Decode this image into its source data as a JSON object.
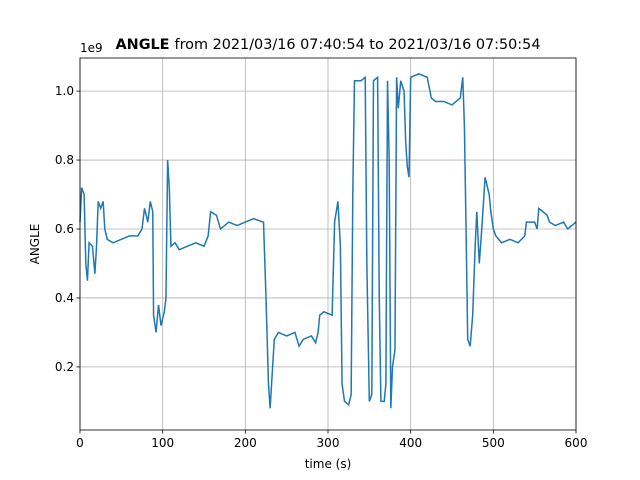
{
  "chart_data": {
    "type": "line",
    "title": {
      "bold": "ANGLE",
      "rest": "from 2021/03/16 07:40:54 to 2021/03/16 07:50:54"
    },
    "offset_label": "1e9",
    "xlabel": "time (s)",
    "ylabel": "ANGLE",
    "xlim": [
      0,
      600
    ],
    "ylim": [
      0.017,
      1.096
    ],
    "xticks": [
      0,
      100,
      200,
      300,
      400,
      500,
      600
    ],
    "yticks": [
      0.2,
      0.4,
      0.6,
      0.8,
      {
        "value": 1,
        "label": "1.0"
      }
    ],
    "grid": true,
    "x": [
      0,
      2,
      5,
      7,
      9,
      11,
      15,
      18,
      20,
      22,
      25,
      28,
      30,
      33,
      40,
      50,
      60,
      70,
      75,
      78,
      82,
      85,
      88,
      89,
      92,
      95,
      98,
      102,
      104,
      106,
      108,
      110,
      115,
      120,
      130,
      140,
      150,
      155,
      158,
      165,
      170,
      180,
      190,
      200,
      210,
      222,
      225,
      228,
      230,
      233,
      235,
      240,
      250,
      260,
      265,
      270,
      280,
      285,
      288,
      290,
      295,
      305,
      308,
      312,
      315,
      317,
      320,
      325,
      328,
      330,
      332,
      340,
      345,
      347,
      350,
      353,
      355,
      360,
      362,
      364,
      368,
      370,
      372,
      374,
      376,
      378,
      381,
      383,
      385,
      388,
      392,
      394,
      396,
      398,
      400,
      410,
      420,
      425,
      430,
      440,
      450,
      460,
      463,
      465,
      467,
      469,
      472,
      475,
      478,
      480,
      483,
      486,
      490,
      495,
      497,
      500,
      503,
      510,
      520,
      530,
      538,
      540,
      550,
      553,
      555,
      560,
      565,
      568,
      575,
      585,
      590,
      600
    ],
    "series": [
      {
        "name": "ANGLE",
        "color": "#1f77b4",
        "values": [
          0.62,
          0.72,
          0.7,
          0.5,
          0.45,
          0.56,
          0.55,
          0.47,
          0.55,
          0.68,
          0.66,
          0.68,
          0.6,
          0.57,
          0.56,
          0.57,
          0.58,
          0.58,
          0.6,
          0.66,
          0.62,
          0.68,
          0.65,
          0.35,
          0.3,
          0.38,
          0.32,
          0.36,
          0.4,
          0.8,
          0.72,
          0.55,
          0.56,
          0.54,
          0.55,
          0.56,
          0.55,
          0.58,
          0.65,
          0.64,
          0.6,
          0.62,
          0.61,
          0.62,
          0.63,
          0.62,
          0.4,
          0.15,
          0.08,
          0.2,
          0.28,
          0.3,
          0.29,
          0.3,
          0.26,
          0.28,
          0.29,
          0.27,
          0.3,
          0.35,
          0.36,
          0.35,
          0.62,
          0.68,
          0.55,
          0.15,
          0.1,
          0.09,
          0.12,
          0.7,
          1.03,
          1.03,
          1.04,
          0.5,
          0.1,
          0.12,
          1.03,
          1.04,
          0.4,
          0.1,
          0.1,
          0.15,
          1.03,
          0.8,
          0.08,
          0.2,
          0.25,
          1.04,
          0.95,
          1.03,
          1.0,
          0.85,
          0.78,
          0.75,
          1.04,
          1.05,
          1.04,
          0.98,
          0.97,
          0.97,
          0.96,
          0.98,
          1.04,
          0.9,
          0.6,
          0.28,
          0.26,
          0.35,
          0.55,
          0.65,
          0.5,
          0.6,
          0.75,
          0.7,
          0.65,
          0.6,
          0.58,
          0.56,
          0.57,
          0.56,
          0.58,
          0.62,
          0.62,
          0.6,
          0.66,
          0.65,
          0.64,
          0.62,
          0.61,
          0.62,
          0.6,
          0.62
        ]
      }
    ]
  }
}
